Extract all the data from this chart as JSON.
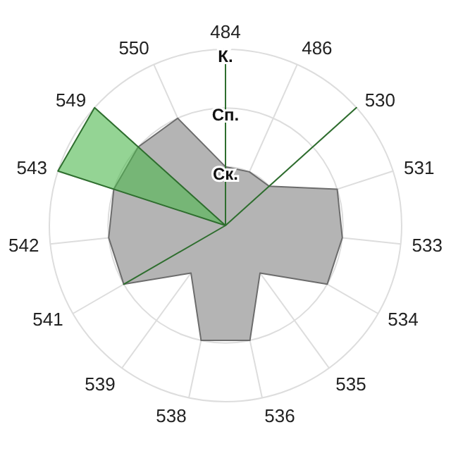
{
  "chart_data": {
    "type": "radar",
    "categories": [
      "484",
      "486",
      "530",
      "531",
      "533",
      "534",
      "535",
      "536",
      "538",
      "539",
      "541",
      "542",
      "543",
      "549",
      "550"
    ],
    "ylim": [
      0,
      3
    ],
    "yticks": [
      {
        "value": 1,
        "label": "Ск."
      },
      {
        "value": 2,
        "label": "Сп."
      },
      {
        "value": 3,
        "label": "К."
      }
    ],
    "grid": true,
    "legend": false,
    "series": [
      {
        "color": "#b4b4b4",
        "values": [
          1,
          1,
          1,
          2,
          2,
          2,
          1,
          2,
          2,
          1,
          2,
          2,
          2,
          2,
          2
        ]
      },
      {
        "color": "#4cb84c",
        "values": [
          3,
          0,
          3,
          0,
          0,
          0,
          0,
          0,
          0,
          0,
          2,
          0,
          3,
          3,
          0
        ]
      }
    ]
  }
}
